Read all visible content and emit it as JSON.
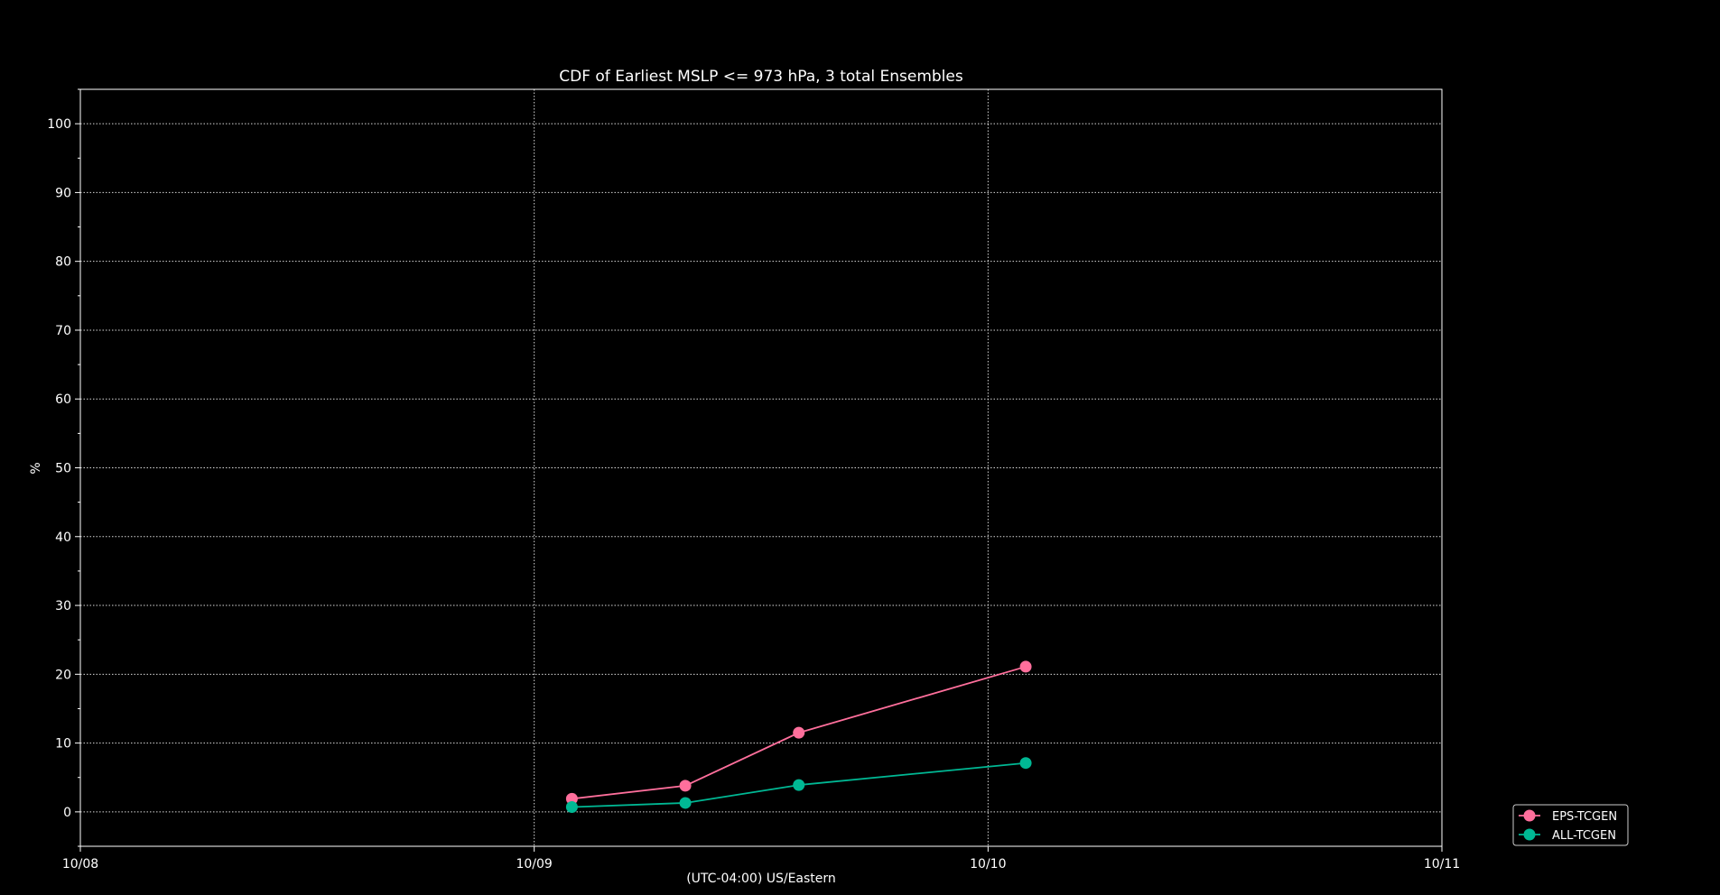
{
  "chart_data": {
    "type": "line",
    "title": "CDF of Earliest MSLP <= 973 hPa, 3 total Ensembles",
    "xlabel": "(UTC-04:00) US/Eastern",
    "ylabel": "%",
    "x_ticks": [
      {
        "value": 0,
        "label": "10/08"
      },
      {
        "value": 1,
        "label": "10/09"
      },
      {
        "value": 2,
        "label": "10/10"
      },
      {
        "value": 3,
        "label": "10/11"
      }
    ],
    "xlim": [
      0,
      3
    ],
    "ylim": [
      -5,
      105
    ],
    "y_ticks": [
      0,
      10,
      20,
      30,
      40,
      50,
      60,
      70,
      80,
      90,
      100
    ],
    "grid": true,
    "legend": "bottom-right outside",
    "background": "#000000",
    "series": [
      {
        "name": "EPS-TCGEN",
        "color": "#ff6f9c",
        "x": [
          1.083,
          1.333,
          1.583,
          2.083
        ],
        "y": [
          1.9,
          3.8,
          11.5,
          21.1
        ]
      },
      {
        "name": "ALL-TCGEN",
        "color": "#00b894",
        "x": [
          1.083,
          1.333,
          1.583,
          2.083
        ],
        "y": [
          0.7,
          1.3,
          3.9,
          7.1
        ]
      }
    ]
  }
}
